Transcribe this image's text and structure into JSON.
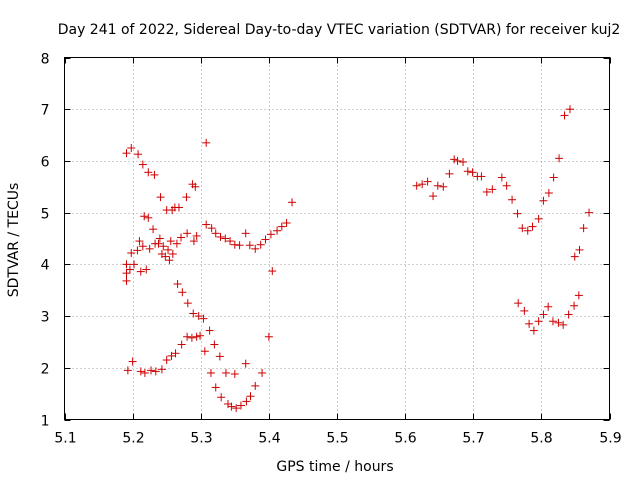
{
  "chart_data": {
    "type": "scatter",
    "title": "Day 241 of 2022, Sidereal Day-to-day VTEC variation (SDTVAR) for receiver kuj2",
    "xlabel": "GPS time / hours",
    "ylabel": "SDTVAR / TECUs",
    "xlim": [
      5.1,
      5.9
    ],
    "ylim": [
      1,
      8
    ],
    "xticks": [
      "5.1",
      "5.2",
      "5.3",
      "5.4",
      "5.5",
      "5.6",
      "5.7",
      "5.8",
      "5.9"
    ],
    "yticks": [
      "1",
      "2",
      "3",
      "4",
      "5",
      "6",
      "7",
      "8"
    ],
    "grid": true,
    "marker": "+",
    "color": "#cc0000",
    "series": [
      {
        "name": "SDTVAR",
        "points": [
          [
            5.191,
            6.15
          ],
          [
            5.198,
            6.25
          ],
          [
            5.208,
            6.13
          ],
          [
            5.215,
            5.93
          ],
          [
            5.223,
            5.78
          ],
          [
            5.232,
            5.73
          ],
          [
            5.191,
            4.0
          ],
          [
            5.191,
            3.83
          ],
          [
            5.191,
            3.68
          ],
          [
            5.196,
            3.9
          ],
          [
            5.198,
            4.22
          ],
          [
            5.202,
            4.0
          ],
          [
            5.207,
            4.27
          ],
          [
            5.21,
            4.45
          ],
          [
            5.212,
            3.86
          ],
          [
            5.215,
            4.35
          ],
          [
            5.217,
            4.93
          ],
          [
            5.22,
            3.9
          ],
          [
            5.223,
            4.9
          ],
          [
            5.225,
            4.3
          ],
          [
            5.23,
            4.68
          ],
          [
            5.233,
            4.4
          ],
          [
            5.238,
            4.4
          ],
          [
            5.24,
            4.5
          ],
          [
            5.241,
            5.3
          ],
          [
            5.243,
            4.2
          ],
          [
            5.245,
            4.35
          ],
          [
            5.248,
            4.15
          ],
          [
            5.25,
            5.05
          ],
          [
            5.252,
            4.28
          ],
          [
            5.254,
            4.08
          ],
          [
            5.256,
            4.45
          ],
          [
            5.258,
            5.05
          ],
          [
            5.259,
            4.2
          ],
          [
            5.262,
            5.1
          ],
          [
            5.265,
            4.4
          ],
          [
            5.268,
            5.1
          ],
          [
            5.271,
            4.52
          ],
          [
            5.279,
            5.3
          ],
          [
            5.28,
            4.6
          ],
          [
            5.288,
            5.55
          ],
          [
            5.29,
            4.45
          ],
          [
            5.292,
            5.5
          ],
          [
            5.294,
            4.55
          ],
          [
            5.308,
            6.35
          ],
          [
            5.308,
            4.77
          ],
          [
            5.316,
            4.7
          ],
          [
            5.322,
            4.6
          ],
          [
            5.329,
            4.53
          ],
          [
            5.336,
            4.5
          ],
          [
            5.343,
            4.45
          ],
          [
            5.35,
            4.38
          ],
          [
            5.357,
            4.37
          ],
          [
            5.366,
            4.6
          ],
          [
            5.372,
            4.37
          ],
          [
            5.38,
            4.3
          ],
          [
            5.388,
            4.38
          ],
          [
            5.395,
            4.48
          ],
          [
            5.403,
            4.58
          ],
          [
            5.405,
            3.87
          ],
          [
            5.412,
            4.65
          ],
          [
            5.419,
            4.73
          ],
          [
            5.426,
            4.8
          ],
          [
            5.434,
            5.2
          ],
          [
            5.193,
            1.95
          ],
          [
            5.2,
            2.12
          ],
          [
            5.212,
            1.93
          ],
          [
            5.218,
            1.9
          ],
          [
            5.227,
            1.95
          ],
          [
            5.234,
            1.93
          ],
          [
            5.243,
            1.97
          ],
          [
            5.25,
            2.15
          ],
          [
            5.257,
            2.23
          ],
          [
            5.263,
            2.28
          ],
          [
            5.266,
            3.62
          ],
          [
            5.272,
            2.45
          ],
          [
            5.273,
            3.46
          ],
          [
            5.28,
            2.6
          ],
          [
            5.281,
            3.25
          ],
          [
            5.287,
            2.58
          ],
          [
            5.289,
            3.05
          ],
          [
            5.294,
            2.6
          ],
          [
            5.297,
            3.0
          ],
          [
            5.299,
            2.62
          ],
          [
            5.304,
            2.95
          ],
          [
            5.306,
            2.32
          ],
          [
            5.313,
            2.72
          ],
          [
            5.315,
            1.9
          ],
          [
            5.32,
            2.45
          ],
          [
            5.322,
            1.62
          ],
          [
            5.328,
            2.22
          ],
          [
            5.33,
            1.43
          ],
          [
            5.337,
            1.9
          ],
          [
            5.34,
            1.3
          ],
          [
            5.345,
            1.25
          ],
          [
            5.35,
            1.88
          ],
          [
            5.352,
            1.22
          ],
          [
            5.359,
            1.27
          ],
          [
            5.366,
            2.08
          ],
          [
            5.367,
            1.35
          ],
          [
            5.373,
            1.45
          ],
          [
            5.38,
            1.65
          ],
          [
            5.39,
            1.9
          ],
          [
            5.4,
            2.6
          ],
          [
            5.617,
            5.52
          ],
          [
            5.625,
            5.55
          ],
          [
            5.633,
            5.6
          ],
          [
            5.641,
            5.32
          ],
          [
            5.648,
            5.52
          ],
          [
            5.656,
            5.5
          ],
          [
            5.665,
            5.75
          ],
          [
            5.672,
            6.03
          ],
          [
            5.677,
            6.0
          ],
          [
            5.685,
            5.98
          ],
          [
            5.692,
            5.8
          ],
          [
            5.699,
            5.78
          ],
          [
            5.706,
            5.7
          ],
          [
            5.712,
            5.7
          ],
          [
            5.72,
            5.4
          ],
          [
            5.728,
            5.45
          ],
          [
            5.742,
            5.68
          ],
          [
            5.749,
            5.52
          ],
          [
            5.757,
            5.25
          ],
          [
            5.765,
            4.98
          ],
          [
            5.772,
            4.7
          ],
          [
            5.78,
            4.65
          ],
          [
            5.787,
            4.73
          ],
          [
            5.796,
            4.88
          ],
          [
            5.803,
            5.23
          ],
          [
            5.811,
            5.38
          ],
          [
            5.818,
            5.68
          ],
          [
            5.826,
            6.05
          ],
          [
            5.834,
            6.88
          ],
          [
            5.842,
            7.0
          ],
          [
            5.849,
            4.15
          ],
          [
            5.856,
            4.28
          ],
          [
            5.862,
            4.7
          ],
          [
            5.87,
            5.0
          ],
          [
            5.766,
            3.25
          ],
          [
            5.775,
            3.1
          ],
          [
            5.782,
            2.85
          ],
          [
            5.789,
            2.72
          ],
          [
            5.796,
            2.9
          ],
          [
            5.803,
            3.03
          ],
          [
            5.81,
            3.18
          ],
          [
            5.817,
            2.9
          ],
          [
            5.825,
            2.87
          ],
          [
            5.832,
            2.83
          ],
          [
            5.84,
            3.03
          ],
          [
            5.848,
            3.2
          ],
          [
            5.855,
            3.4
          ]
        ]
      }
    ]
  }
}
